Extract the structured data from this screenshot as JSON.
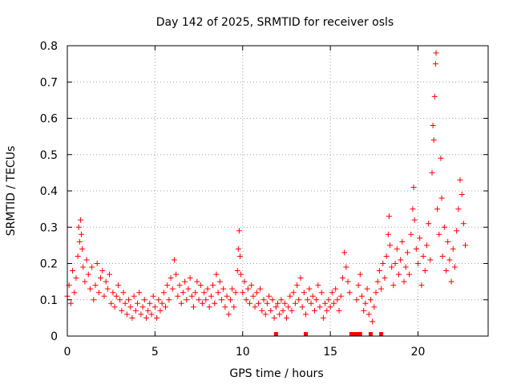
{
  "chart_data": {
    "type": "scatter",
    "title": "Day 142 of 2025, SRMTID for receiver osls",
    "xlabel": "GPS time / hours",
    "ylabel": "SRMTID / TECUs",
    "xlim": [
      0,
      24
    ],
    "ylim": [
      0,
      0.8
    ],
    "grid": true,
    "marker": "+",
    "color": "#ff0000",
    "x_ticks": [
      0,
      5,
      10,
      15,
      20
    ],
    "x_tick_labels": [
      "0",
      "5",
      "10",
      "15",
      "20"
    ],
    "y_ticks": [
      0,
      0.1,
      0.2,
      0.3,
      0.4,
      0.5,
      0.6,
      0.7,
      0.8
    ],
    "y_tick_labels": [
      "0",
      "0.1",
      "0.2",
      "0.3",
      "0.4",
      "0.5",
      "0.6",
      "0.7",
      "0.8"
    ],
    "series": [
      {
        "name": "SRMTID",
        "points": [
          [
            0.0,
            0.11
          ],
          [
            0.1,
            0.14
          ],
          [
            0.2,
            0.09
          ],
          [
            0.3,
            0.18
          ],
          [
            0.4,
            0.12
          ],
          [
            0.5,
            0.16
          ],
          [
            0.6,
            0.22
          ],
          [
            0.65,
            0.3
          ],
          [
            0.7,
            0.26
          ],
          [
            0.75,
            0.32
          ],
          [
            0.8,
            0.28
          ],
          [
            0.85,
            0.24
          ],
          [
            0.9,
            0.19
          ],
          [
            1.0,
            0.15
          ],
          [
            1.1,
            0.21
          ],
          [
            1.2,
            0.17
          ],
          [
            1.3,
            0.13
          ],
          [
            1.4,
            0.19
          ],
          [
            1.5,
            0.1
          ],
          [
            1.6,
            0.14
          ],
          [
            1.7,
            0.2
          ],
          [
            1.8,
            0.12
          ],
          [
            1.9,
            0.16
          ],
          [
            2.0,
            0.18
          ],
          [
            2.1,
            0.11
          ],
          [
            2.2,
            0.15
          ],
          [
            2.3,
            0.13
          ],
          [
            2.4,
            0.17
          ],
          [
            2.5,
            0.09
          ],
          [
            2.6,
            0.12
          ],
          [
            2.7,
            0.08
          ],
          [
            2.8,
            0.11
          ],
          [
            2.9,
            0.14
          ],
          [
            3.0,
            0.1
          ],
          [
            3.1,
            0.07
          ],
          [
            3.2,
            0.12
          ],
          [
            3.3,
            0.09
          ],
          [
            3.4,
            0.06
          ],
          [
            3.5,
            0.1
          ],
          [
            3.6,
            0.08
          ],
          [
            3.7,
            0.05
          ],
          [
            3.8,
            0.11
          ],
          [
            3.9,
            0.07
          ],
          [
            4.0,
            0.09
          ],
          [
            4.1,
            0.12
          ],
          [
            4.2,
            0.06
          ],
          [
            4.3,
            0.08
          ],
          [
            4.4,
            0.1
          ],
          [
            4.5,
            0.05
          ],
          [
            4.6,
            0.07
          ],
          [
            4.7,
            0.09
          ],
          [
            4.8,
            0.06
          ],
          [
            4.9,
            0.11
          ],
          [
            5.0,
            0.08
          ],
          [
            5.1,
            0.05
          ],
          [
            5.2,
            0.1
          ],
          [
            5.3,
            0.07
          ],
          [
            5.4,
            0.09
          ],
          [
            5.5,
            0.12
          ],
          [
            5.6,
            0.08
          ],
          [
            5.7,
            0.14
          ],
          [
            5.8,
            0.1
          ],
          [
            5.9,
            0.16
          ],
          [
            6.0,
            0.13
          ],
          [
            6.1,
            0.21
          ],
          [
            6.2,
            0.17
          ],
          [
            6.3,
            0.11
          ],
          [
            6.4,
            0.14
          ],
          [
            6.5,
            0.09
          ],
          [
            6.6,
            0.12
          ],
          [
            6.7,
            0.15
          ],
          [
            6.8,
            0.1
          ],
          [
            6.9,
            0.13
          ],
          [
            7.0,
            0.16
          ],
          [
            7.1,
            0.11
          ],
          [
            7.2,
            0.08
          ],
          [
            7.3,
            0.12
          ],
          [
            7.4,
            0.15
          ],
          [
            7.5,
            0.1
          ],
          [
            7.6,
            0.14
          ],
          [
            7.7,
            0.09
          ],
          [
            7.8,
            0.12
          ],
          [
            7.9,
            0.1
          ],
          [
            8.0,
            0.13
          ],
          [
            8.1,
            0.08
          ],
          [
            8.2,
            0.11
          ],
          [
            8.3,
            0.14
          ],
          [
            8.4,
            0.09
          ],
          [
            8.5,
            0.17
          ],
          [
            8.6,
            0.12
          ],
          [
            8.7,
            0.15
          ],
          [
            8.8,
            0.1
          ],
          [
            8.9,
            0.13
          ],
          [
            9.0,
            0.08
          ],
          [
            9.1,
            0.11
          ],
          [
            9.2,
            0.06
          ],
          [
            9.3,
            0.1
          ],
          [
            9.4,
            0.13
          ],
          [
            9.5,
            0.08
          ],
          [
            9.6,
            0.12
          ],
          [
            9.7,
            0.18
          ],
          [
            9.75,
            0.24
          ],
          [
            9.8,
            0.29
          ],
          [
            9.85,
            0.22
          ],
          [
            9.9,
            0.17
          ],
          [
            10.0,
            0.12
          ],
          [
            10.1,
            0.15
          ],
          [
            10.2,
            0.1
          ],
          [
            10.3,
            0.13
          ],
          [
            10.4,
            0.09
          ],
          [
            10.5,
            0.14
          ],
          [
            10.6,
            0.11
          ],
          [
            10.7,
            0.08
          ],
          [
            10.8,
            0.12
          ],
          [
            10.9,
            0.09
          ],
          [
            11.0,
            0.13
          ],
          [
            11.1,
            0.07
          ],
          [
            11.2,
            0.1
          ],
          [
            11.3,
            0.06
          ],
          [
            11.4,
            0.09
          ],
          [
            11.5,
            0.11
          ],
          [
            11.6,
            0.07
          ],
          [
            11.7,
            0.1
          ],
          [
            11.8,
            0.05
          ],
          [
            11.9,
            0.08
          ],
          [
            12.0,
            0.09
          ],
          [
            12.1,
            0.06
          ],
          [
            12.2,
            0.1
          ],
          [
            12.3,
            0.07
          ],
          [
            12.4,
            0.09
          ],
          [
            12.5,
            0.05
          ],
          [
            12.6,
            0.08
          ],
          [
            12.7,
            0.11
          ],
          [
            12.8,
            0.07
          ],
          [
            12.9,
            0.12
          ],
          [
            13.0,
            0.09
          ],
          [
            13.1,
            0.14
          ],
          [
            13.2,
            0.1
          ],
          [
            13.3,
            0.16
          ],
          [
            13.4,
            0.08
          ],
          [
            13.5,
            0.12
          ],
          [
            13.6,
            0.06
          ],
          [
            13.7,
            0.1
          ],
          [
            13.8,
            0.13
          ],
          [
            13.9,
            0.09
          ],
          [
            14.0,
            0.11
          ],
          [
            14.1,
            0.07
          ],
          [
            14.2,
            0.1
          ],
          [
            14.3,
            0.14
          ],
          [
            14.4,
            0.08
          ],
          [
            14.5,
            0.12
          ],
          [
            14.6,
            0.05
          ],
          [
            14.7,
            0.09
          ],
          [
            14.8,
            0.07
          ],
          [
            14.9,
            0.1
          ],
          [
            15.0,
            0.08
          ],
          [
            15.1,
            0.12
          ],
          [
            15.2,
            0.09
          ],
          [
            15.3,
            0.13
          ],
          [
            15.4,
            0.1
          ],
          [
            15.5,
            0.07
          ],
          [
            15.6,
            0.11
          ],
          [
            15.7,
            0.16
          ],
          [
            15.8,
            0.23
          ],
          [
            15.9,
            0.19
          ],
          [
            16.0,
            0.15
          ],
          [
            16.1,
            0.12
          ],
          [
            16.5,
            0.1
          ],
          [
            16.6,
            0.14
          ],
          [
            16.7,
            0.17
          ],
          [
            16.8,
            0.11
          ],
          [
            16.9,
            0.07
          ],
          [
            17.0,
            0.09
          ],
          [
            17.1,
            0.13
          ],
          [
            17.2,
            0.06
          ],
          [
            17.3,
            0.1
          ],
          [
            17.4,
            0.04
          ],
          [
            17.5,
            0.08
          ],
          [
            17.6,
            0.12
          ],
          [
            17.7,
            0.15
          ],
          [
            17.8,
            0.18
          ],
          [
            17.9,
            0.13
          ],
          [
            18.0,
            0.2
          ],
          [
            18.1,
            0.16
          ],
          [
            18.2,
            0.22
          ],
          [
            18.3,
            0.28
          ],
          [
            18.35,
            0.33
          ],
          [
            18.4,
            0.25
          ],
          [
            18.5,
            0.19
          ],
          [
            18.6,
            0.14
          ],
          [
            18.7,
            0.2
          ],
          [
            18.8,
            0.24
          ],
          [
            18.9,
            0.17
          ],
          [
            19.0,
            0.21
          ],
          [
            19.1,
            0.26
          ],
          [
            19.2,
            0.15
          ],
          [
            19.3,
            0.19
          ],
          [
            19.4,
            0.23
          ],
          [
            19.5,
            0.17
          ],
          [
            19.6,
            0.28
          ],
          [
            19.7,
            0.35
          ],
          [
            19.75,
            0.41
          ],
          [
            19.8,
            0.32
          ],
          [
            19.9,
            0.24
          ],
          [
            20.0,
            0.2
          ],
          [
            20.1,
            0.27
          ],
          [
            20.2,
            0.14
          ],
          [
            20.3,
            0.22
          ],
          [
            20.4,
            0.18
          ],
          [
            20.5,
            0.25
          ],
          [
            20.6,
            0.31
          ],
          [
            20.7,
            0.21
          ],
          [
            20.8,
            0.45
          ],
          [
            20.85,
            0.58
          ],
          [
            20.9,
            0.54
          ],
          [
            20.95,
            0.66
          ],
          [
            21.0,
            0.75
          ],
          [
            21.03,
            0.78
          ],
          [
            21.1,
            0.35
          ],
          [
            21.2,
            0.28
          ],
          [
            21.3,
            0.49
          ],
          [
            21.35,
            0.38
          ],
          [
            21.4,
            0.22
          ],
          [
            21.5,
            0.3
          ],
          [
            21.6,
            0.18
          ],
          [
            21.7,
            0.26
          ],
          [
            21.8,
            0.21
          ],
          [
            21.9,
            0.15
          ],
          [
            22.0,
            0.24
          ],
          [
            22.1,
            0.19
          ],
          [
            22.2,
            0.29
          ],
          [
            22.3,
            0.35
          ],
          [
            22.4,
            0.43
          ],
          [
            22.5,
            0.39
          ],
          [
            22.6,
            0.31
          ],
          [
            22.7,
            0.25
          ]
        ]
      }
    ],
    "gap_markers_x": [
      11.9,
      13.6,
      16.2,
      16.3,
      16.4,
      16.5,
      16.6,
      16.7,
      17.3,
      17.9
    ]
  }
}
